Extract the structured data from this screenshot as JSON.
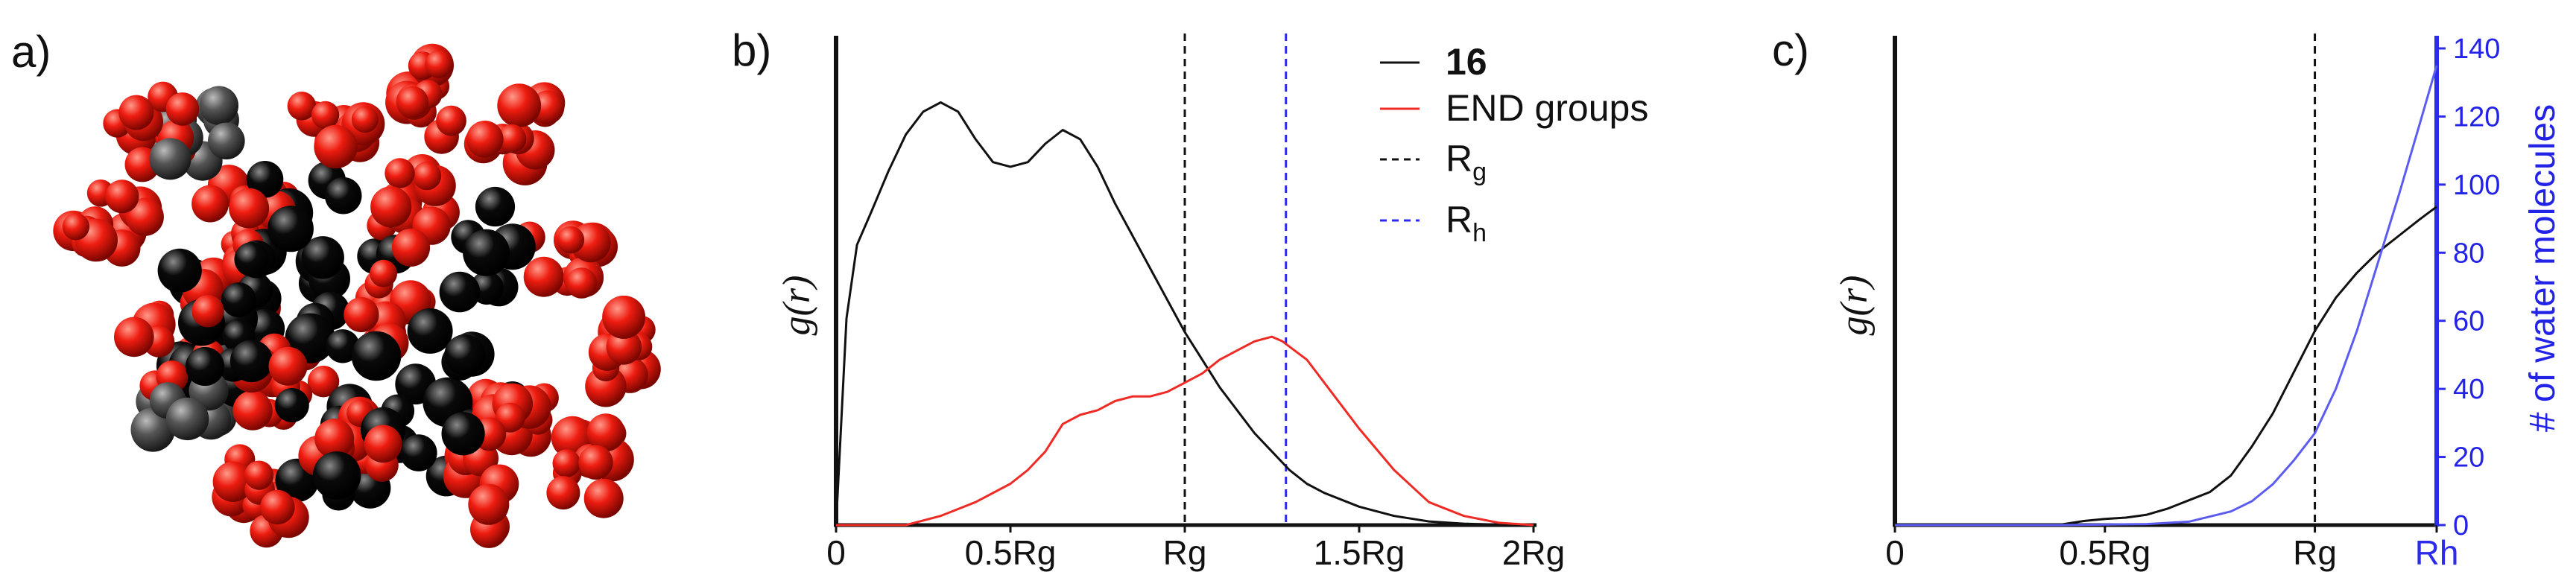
{
  "panels": {
    "a": {
      "label": "a)"
    },
    "b": {
      "label": "b)"
    },
    "c": {
      "label": "c)"
    }
  },
  "molecule": {
    "colors": {
      "end_groups": "#ee1c10",
      "core": "#0a0a0a"
    }
  },
  "colors": {
    "black": "#111111",
    "red": "#ee2b24",
    "blue": "#2b2be8",
    "rh_blue": "#3f3fe6"
  },
  "chart_data": [
    {
      "panel": "b",
      "type": "line",
      "title": "",
      "xlabel": "",
      "ylabel": "g(r)",
      "xlim": [
        0,
        2
      ],
      "ylim": [
        0,
        1.07
      ],
      "x_ticks": [
        {
          "value": 0,
          "label": "0"
        },
        {
          "value": 0.5,
          "label": "0.5Rg"
        },
        {
          "value": 1.0,
          "label": "Rg"
        },
        {
          "value": 1.5,
          "label": "1.5Rg"
        },
        {
          "value": 2.0,
          "label": "2Rg"
        }
      ],
      "series": [
        {
          "name": "16",
          "bold": true,
          "color": "#111111",
          "x": [
            0,
            0.03,
            0.06,
            0.1,
            0.15,
            0.2,
            0.25,
            0.3,
            0.35,
            0.4,
            0.45,
            0.5,
            0.55,
            0.6,
            0.65,
            0.7,
            0.75,
            0.8,
            0.85,
            0.9,
            0.95,
            1.0,
            1.05,
            1.1,
            1.15,
            1.2,
            1.25,
            1.3,
            1.35,
            1.4,
            1.5,
            1.6,
            1.7,
            1.8,
            1.9,
            2.0
          ],
          "y": [
            0.0,
            0.45,
            0.61,
            0.68,
            0.77,
            0.85,
            0.9,
            0.92,
            0.9,
            0.84,
            0.79,
            0.78,
            0.79,
            0.83,
            0.86,
            0.84,
            0.78,
            0.7,
            0.63,
            0.56,
            0.49,
            0.42,
            0.36,
            0.3,
            0.25,
            0.2,
            0.16,
            0.12,
            0.09,
            0.07,
            0.04,
            0.02,
            0.008,
            0.003,
            0.001,
            0.0
          ]
        },
        {
          "name": "END groups",
          "bold": false,
          "color": "#ee2b24",
          "x": [
            0,
            0.2,
            0.3,
            0.4,
            0.5,
            0.55,
            0.6,
            0.65,
            0.7,
            0.75,
            0.8,
            0.85,
            0.9,
            0.95,
            1.0,
            1.05,
            1.1,
            1.15,
            1.2,
            1.25,
            1.28,
            1.35,
            1.4,
            1.5,
            1.6,
            1.7,
            1.8,
            1.9,
            2.0
          ],
          "y": [
            0.0,
            0.0,
            0.02,
            0.05,
            0.09,
            0.12,
            0.16,
            0.22,
            0.24,
            0.25,
            0.27,
            0.28,
            0.28,
            0.29,
            0.31,
            0.33,
            0.36,
            0.38,
            0.4,
            0.41,
            0.4,
            0.36,
            0.31,
            0.21,
            0.12,
            0.05,
            0.02,
            0.005,
            0.0
          ]
        }
      ],
      "reference_lines": [
        {
          "name": "R_g",
          "base": "R",
          "sub": "g",
          "x": 1.0,
          "style": "dashed",
          "color": "#111111"
        },
        {
          "name": "R_h",
          "base": "R",
          "sub": "h",
          "x": 1.29,
          "style": "dashed",
          "color": "#2b2be8"
        }
      ],
      "legend": {
        "position": "top-right"
      }
    },
    {
      "panel": "c",
      "type": "line",
      "title": "",
      "xlabel": "",
      "ylabel": "g(r)",
      "y2label": "# of water molecules",
      "xlim": [
        0,
        1.29
      ],
      "ylim": [
        0,
        1.0
      ],
      "y2lim": [
        0,
        140
      ],
      "x_ticks": [
        {
          "value": 0,
          "label": "0",
          "color": "#111111"
        },
        {
          "value": 0.5,
          "label": "0.5Rg",
          "color": "#111111"
        },
        {
          "value": 1.0,
          "label": "Rg",
          "color": "#111111"
        },
        {
          "value": 1.29,
          "label": "Rh",
          "color": "#2b2be8"
        }
      ],
      "y2_ticks": [
        0,
        20,
        40,
        60,
        80,
        100,
        120,
        140
      ],
      "series": [
        {
          "name": "g(r)",
          "axis": "left",
          "color": "#111111",
          "x": [
            0,
            0.2,
            0.4,
            0.45,
            0.5,
            0.55,
            0.6,
            0.65,
            0.7,
            0.75,
            0.8,
            0.85,
            0.9,
            0.95,
            1.0,
            1.05,
            1.1,
            1.15,
            1.2,
            1.25,
            1.29
          ],
          "y": [
            0.0,
            0.0,
            0.002,
            0.01,
            0.015,
            0.018,
            0.025,
            0.04,
            0.06,
            0.08,
            0.12,
            0.19,
            0.27,
            0.37,
            0.47,
            0.55,
            0.61,
            0.66,
            0.7,
            0.74,
            0.77
          ]
        },
        {
          "name": "# of water molecules",
          "axis": "right",
          "color": "#5c5cf0",
          "x": [
            0,
            0.4,
            0.6,
            0.7,
            0.8,
            0.85,
            0.9,
            0.95,
            1.0,
            1.05,
            1.1,
            1.15,
            1.2,
            1.25,
            1.29
          ],
          "y": [
            0,
            0,
            0.3,
            1,
            4,
            7,
            12,
            19,
            27,
            40,
            57,
            77,
            97,
            118,
            135
          ]
        }
      ],
      "reference_lines": [
        {
          "name": "Rg",
          "x": 1.0,
          "style": "dashed",
          "color": "#111111"
        }
      ]
    }
  ]
}
